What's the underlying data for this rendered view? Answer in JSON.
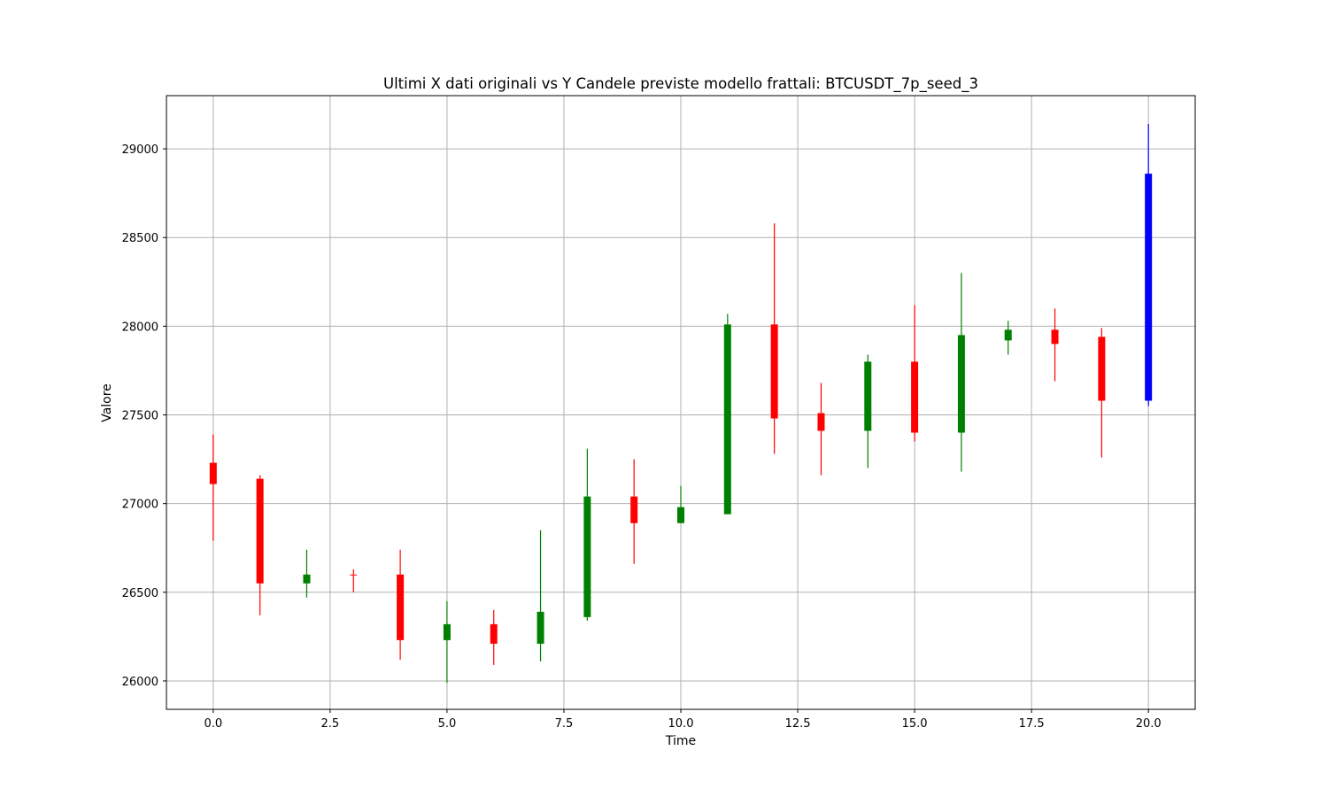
{
  "chart_data": {
    "type": "candlestick",
    "title": "Ultimi X dati originali vs Y Candele previste modello frattali: BTCUSDT_7p_seed_3",
    "xlabel": "Time",
    "ylabel": "Valore",
    "xlim": [
      -1,
      21
    ],
    "ylim": [
      25840,
      29300
    ],
    "xticks": [
      0,
      2.5,
      5,
      7.5,
      10,
      12.5,
      15,
      17.5,
      20
    ],
    "xtick_labels": [
      "0.0",
      "2.5",
      "5.0",
      "7.5",
      "10.0",
      "12.5",
      "15.0",
      "17.5",
      "20.0"
    ],
    "yticks": [
      26000,
      26500,
      27000,
      27500,
      28000,
      28500,
      29000
    ],
    "ytick_labels": [
      "26000",
      "26500",
      "27000",
      "27500",
      "28000",
      "28500",
      "29000"
    ],
    "grid": true,
    "colors": {
      "up": "#008000",
      "down": "#ff0000",
      "predicted": "#0000ff"
    },
    "candles": [
      {
        "x": 0,
        "open": 27230,
        "high": 27390,
        "low": 26790,
        "close": 27110,
        "kind": "down"
      },
      {
        "x": 1,
        "open": 27140,
        "high": 27160,
        "low": 26370,
        "close": 26550,
        "kind": "down"
      },
      {
        "x": 2,
        "open": 26550,
        "high": 26740,
        "low": 26470,
        "close": 26600,
        "kind": "up"
      },
      {
        "x": 3,
        "open": 26600,
        "high": 26630,
        "low": 26500,
        "close": 26600,
        "kind": "down"
      },
      {
        "x": 4,
        "open": 26600,
        "high": 26740,
        "low": 26120,
        "close": 26230,
        "kind": "down"
      },
      {
        "x": 5,
        "open": 26230,
        "high": 26450,
        "low": 25990,
        "close": 26320,
        "kind": "up"
      },
      {
        "x": 6,
        "open": 26320,
        "high": 26400,
        "low": 26090,
        "close": 26210,
        "kind": "down"
      },
      {
        "x": 7,
        "open": 26210,
        "high": 26850,
        "low": 26110,
        "close": 26390,
        "kind": "up"
      },
      {
        "x": 8,
        "open": 26360,
        "high": 27310,
        "low": 26340,
        "close": 27040,
        "kind": "up"
      },
      {
        "x": 9,
        "open": 27040,
        "high": 27250,
        "low": 26660,
        "close": 26890,
        "kind": "down"
      },
      {
        "x": 10,
        "open": 26890,
        "high": 27100,
        "low": 26890,
        "close": 26980,
        "kind": "up"
      },
      {
        "x": 11,
        "open": 26940,
        "high": 28070,
        "low": 26940,
        "close": 28010,
        "kind": "up"
      },
      {
        "x": 12,
        "open": 28010,
        "high": 28580,
        "low": 27280,
        "close": 27480,
        "kind": "down"
      },
      {
        "x": 13,
        "open": 27510,
        "high": 27680,
        "low": 27160,
        "close": 27410,
        "kind": "down"
      },
      {
        "x": 14,
        "open": 27410,
        "high": 27840,
        "low": 27200,
        "close": 27800,
        "kind": "up"
      },
      {
        "x": 15,
        "open": 27800,
        "high": 28120,
        "low": 27350,
        "close": 27400,
        "kind": "down"
      },
      {
        "x": 16,
        "open": 27400,
        "high": 28300,
        "low": 27180,
        "close": 27950,
        "kind": "up"
      },
      {
        "x": 17,
        "open": 27920,
        "high": 28030,
        "low": 27840,
        "close": 27980,
        "kind": "up"
      },
      {
        "x": 18,
        "open": 27980,
        "high": 28100,
        "low": 27690,
        "close": 27900,
        "kind": "down"
      },
      {
        "x": 19,
        "open": 27940,
        "high": 27990,
        "low": 27260,
        "close": 27580,
        "kind": "down"
      },
      {
        "x": 20,
        "open": 27580,
        "high": 29140,
        "low": 27550,
        "close": 28860,
        "kind": "predicted"
      }
    ]
  }
}
